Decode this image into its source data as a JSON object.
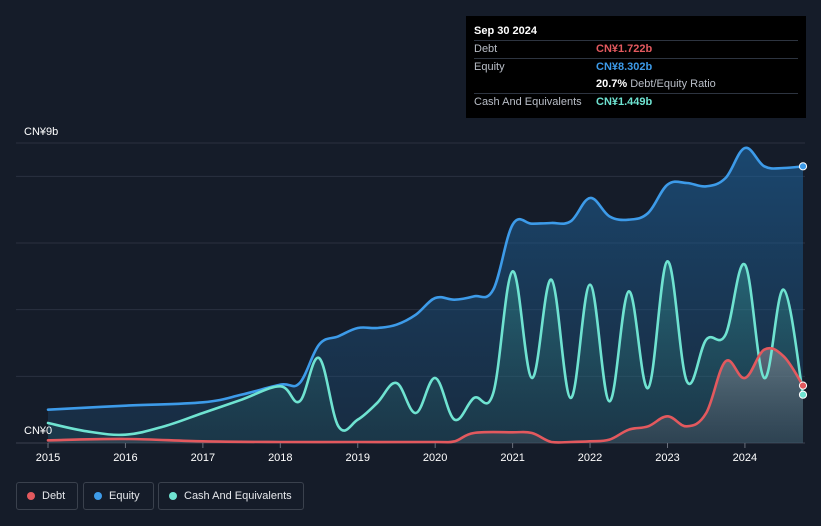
{
  "tooltip": {
    "date": "Sep 30 2024",
    "rows": [
      {
        "label": "Debt",
        "value": "CN¥1.722b",
        "color": "#e3595e",
        "extra": ""
      },
      {
        "label": "Equity",
        "value": "CN¥8.302b",
        "color": "#3d9be9",
        "extra": ""
      },
      {
        "label": "",
        "value": "20.7%",
        "color": "#ffffff",
        "extra": "Debt/Equity Ratio"
      },
      {
        "label": "Cash And Equivalents",
        "value": "CN¥1.449b",
        "color": "#6fe3d1",
        "extra": ""
      }
    ]
  },
  "legend": [
    {
      "label": "Debt",
      "color": "#e3595e"
    },
    {
      "label": "Equity",
      "color": "#3d9be9"
    },
    {
      "label": "Cash And Equivalents",
      "color": "#6fe3d1"
    }
  ],
  "chart_data": {
    "type": "area",
    "y_top_label": "CN¥9b",
    "y_bottom_label": "CN¥0",
    "ylim": [
      0,
      9
    ],
    "xlim": [
      2015,
      2024.75
    ],
    "grid": true,
    "x_ticks": [
      "2015",
      "2016",
      "2017",
      "2018",
      "2019",
      "2020",
      "2021",
      "2022",
      "2023",
      "2024"
    ],
    "series": [
      {
        "name": "Equity",
        "color": "#3d9be9",
        "x": [
          2015,
          2016,
          2017,
          2017.5,
          2018,
          2018.25,
          2018.5,
          2018.75,
          2019,
          2019.25,
          2019.5,
          2019.75,
          2020,
          2020.25,
          2020.5,
          2020.75,
          2021,
          2021.25,
          2021.5,
          2021.75,
          2022,
          2022.25,
          2022.5,
          2022.75,
          2023,
          2023.25,
          2023.5,
          2023.75,
          2024,
          2024.25,
          2024.5,
          2024.75
        ],
        "values": [
          1.0,
          1.12,
          1.22,
          1.45,
          1.75,
          1.8,
          2.95,
          3.2,
          3.45,
          3.45,
          3.55,
          3.85,
          4.35,
          4.3,
          4.4,
          4.6,
          6.55,
          6.58,
          6.6,
          6.65,
          7.35,
          6.8,
          6.7,
          6.9,
          7.75,
          7.8,
          7.7,
          7.95,
          8.85,
          8.3,
          8.25,
          8.3
        ]
      },
      {
        "name": "Cash And Equivalents",
        "color": "#6fe3d1",
        "x": [
          2015,
          2015.5,
          2016,
          2016.5,
          2017,
          2017.5,
          2018,
          2018.25,
          2018.5,
          2018.75,
          2019,
          2019.25,
          2019.5,
          2019.75,
          2020,
          2020.25,
          2020.5,
          2020.75,
          2021,
          2021.25,
          2021.5,
          2021.75,
          2022,
          2022.25,
          2022.5,
          2022.75,
          2023,
          2023.25,
          2023.5,
          2023.75,
          2024,
          2024.25,
          2024.5,
          2024.75
        ],
        "values": [
          0.6,
          0.35,
          0.25,
          0.5,
          0.9,
          1.3,
          1.7,
          1.25,
          2.55,
          0.5,
          0.7,
          1.2,
          1.8,
          0.9,
          1.95,
          0.7,
          1.35,
          1.5,
          5.15,
          1.95,
          4.9,
          1.35,
          4.75,
          1.25,
          4.55,
          1.65,
          5.45,
          1.85,
          3.1,
          3.25,
          5.35,
          1.95,
          4.6,
          1.449
        ]
      },
      {
        "name": "Debt",
        "color": "#e3595e",
        "x": [
          2015,
          2016,
          2017,
          2018,
          2019,
          2020,
          2020.25,
          2020.5,
          2021,
          2021.25,
          2021.5,
          2021.75,
          2022,
          2022.25,
          2022.5,
          2022.75,
          2023,
          2023.25,
          2023.5,
          2023.75,
          2024,
          2024.25,
          2024.5,
          2024.75
        ],
        "values": [
          0.08,
          0.12,
          0.05,
          0.03,
          0.03,
          0.03,
          0.05,
          0.3,
          0.32,
          0.3,
          0.03,
          0.03,
          0.05,
          0.1,
          0.4,
          0.5,
          0.8,
          0.5,
          0.9,
          2.45,
          1.95,
          2.8,
          2.6,
          1.722
        ]
      }
    ]
  }
}
